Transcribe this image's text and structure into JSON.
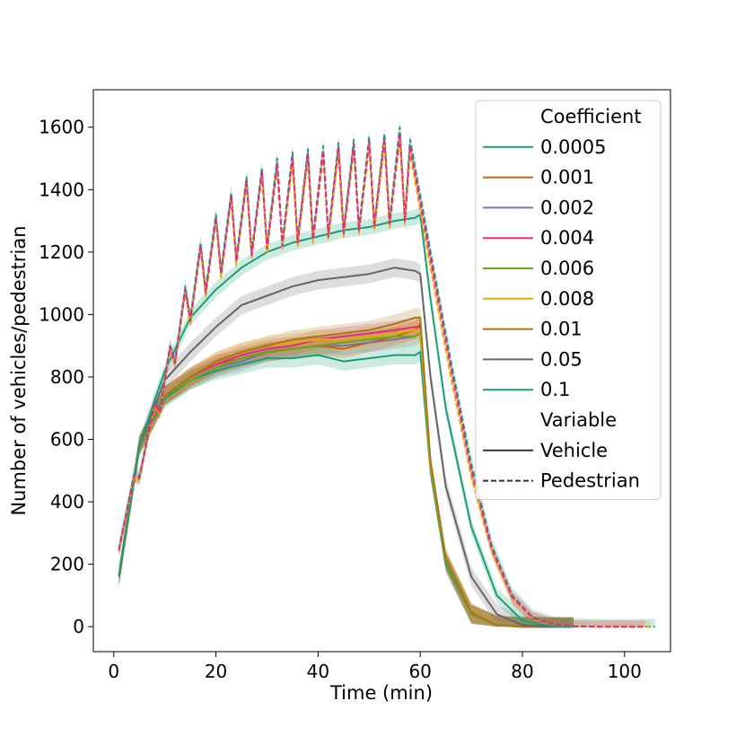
{
  "chart_data": {
    "type": "line",
    "xlabel": "Time (min)",
    "ylabel": "Number of vehicles/pedestrian",
    "xlim": [
      -4,
      109
    ],
    "ylim": [
      -80,
      1720
    ],
    "xticks": [
      0,
      20,
      40,
      60,
      80,
      100
    ],
    "yticks": [
      0,
      200,
      400,
      600,
      800,
      1000,
      1200,
      1400,
      1600
    ],
    "grid": false,
    "legend": {
      "placement": "top-right",
      "entries": [
        {
          "label": "Coefficient",
          "kind": "header"
        },
        {
          "label": "0.0005",
          "kind": "series",
          "color": "#1b9e77",
          "dash": "solid"
        },
        {
          "label": "0.001",
          "kind": "series",
          "color": "#d95f02",
          "dash": "solid"
        },
        {
          "label": "0.002",
          "kind": "series",
          "color": "#7570b3",
          "dash": "solid"
        },
        {
          "label": "0.004",
          "kind": "series",
          "color": "#e7298a",
          "dash": "solid"
        },
        {
          "label": "0.006",
          "kind": "series",
          "color": "#66a61e",
          "dash": "solid"
        },
        {
          "label": "0.008",
          "kind": "series",
          "color": "#e6ab02",
          "dash": "solid"
        },
        {
          "label": "0.01",
          "kind": "series",
          "color": "#a6761d",
          "dash": "solid"
        },
        {
          "label": "0.05",
          "kind": "series",
          "color": "#666666",
          "dash": "solid"
        },
        {
          "label": "0.1",
          "kind": "series",
          "color": "#1b9e77",
          "dash": "solid"
        },
        {
          "label": "Variable",
          "kind": "header"
        },
        {
          "label": "Vehicle",
          "kind": "style",
          "color": "#333333",
          "dash": "solid"
        },
        {
          "label": "Pedestrian",
          "kind": "style",
          "color": "#333333",
          "dash": "dashed"
        }
      ]
    },
    "series": [
      {
        "name": "0.0005",
        "variable": "Vehicle",
        "color": "#1b9e77",
        "dash": "solid",
        "band": 30,
        "x": [
          1,
          5,
          10,
          15,
          20,
          25,
          30,
          35,
          40,
          45,
          50,
          55,
          59,
          60,
          62,
          65,
          70,
          75,
          80,
          85,
          90
        ],
        "y": [
          160,
          580,
          730,
          790,
          820,
          840,
          860,
          860,
          870,
          850,
          860,
          870,
          870,
          880,
          500,
          200,
          40,
          5,
          0,
          0,
          0
        ]
      },
      {
        "name": "0.001",
        "variable": "Vehicle",
        "color": "#d95f02",
        "dash": "solid",
        "band": 30,
        "x": [
          1,
          5,
          10,
          15,
          20,
          25,
          30,
          35,
          40,
          45,
          50,
          55,
          59,
          60,
          62,
          65,
          70,
          75,
          80,
          85,
          90
        ],
        "y": [
          160,
          580,
          740,
          800,
          840,
          860,
          880,
          890,
          900,
          890,
          910,
          930,
          950,
          970,
          520,
          210,
          40,
          5,
          0,
          0,
          0
        ]
      },
      {
        "name": "0.002",
        "variable": "Vehicle",
        "color": "#7570b3",
        "dash": "solid",
        "band": 30,
        "x": [
          1,
          5,
          10,
          15,
          20,
          25,
          30,
          35,
          40,
          45,
          50,
          55,
          59,
          60,
          62,
          65,
          70,
          75,
          80,
          85,
          90
        ],
        "y": [
          160,
          580,
          740,
          790,
          830,
          850,
          880,
          890,
          900,
          900,
          910,
          920,
          930,
          940,
          510,
          210,
          40,
          5,
          0,
          0,
          0
        ]
      },
      {
        "name": "0.004",
        "variable": "Vehicle",
        "color": "#e7298a",
        "dash": "solid",
        "band": 30,
        "x": [
          1,
          5,
          10,
          15,
          20,
          25,
          30,
          35,
          40,
          45,
          50,
          55,
          59,
          60,
          62,
          65,
          70,
          75,
          80,
          85,
          90
        ],
        "y": [
          160,
          580,
          740,
          800,
          840,
          870,
          890,
          900,
          920,
          930,
          940,
          950,
          960,
          960,
          520,
          210,
          40,
          5,
          0,
          0,
          0
        ]
      },
      {
        "name": "0.006",
        "variable": "Vehicle",
        "color": "#66a61e",
        "dash": "solid",
        "band": 30,
        "x": [
          1,
          5,
          10,
          15,
          20,
          25,
          30,
          35,
          40,
          45,
          50,
          55,
          59,
          60,
          62,
          65,
          70,
          75,
          80,
          85,
          90
        ],
        "y": [
          160,
          580,
          740,
          790,
          830,
          860,
          880,
          890,
          900,
          910,
          920,
          930,
          930,
          940,
          510,
          210,
          40,
          5,
          0,
          0,
          0
        ]
      },
      {
        "name": "0.008",
        "variable": "Vehicle",
        "color": "#e6ab02",
        "dash": "solid",
        "band": 30,
        "x": [
          1,
          5,
          10,
          15,
          20,
          25,
          30,
          35,
          40,
          45,
          50,
          55,
          59,
          60,
          62,
          65,
          70,
          75,
          80,
          85,
          90
        ],
        "y": [
          160,
          580,
          740,
          800,
          850,
          880,
          900,
          910,
          920,
          920,
          930,
          940,
          950,
          950,
          520,
          220,
          45,
          5,
          0,
          0,
          0
        ]
      },
      {
        "name": "0.01",
        "variable": "Vehicle",
        "color": "#a6761d",
        "dash": "solid",
        "band": 30,
        "x": [
          1,
          5,
          10,
          15,
          20,
          25,
          30,
          35,
          40,
          45,
          50,
          55,
          59,
          60,
          62,
          65,
          70,
          75,
          80,
          85,
          90
        ],
        "y": [
          160,
          580,
          740,
          800,
          850,
          880,
          900,
          920,
          930,
          940,
          950,
          970,
          990,
          990,
          530,
          220,
          45,
          5,
          0,
          0,
          0
        ]
      },
      {
        "name": "0.05",
        "variable": "Vehicle",
        "color": "#666666",
        "dash": "solid",
        "band": 30,
        "x": [
          1,
          5,
          10,
          15,
          20,
          25,
          30,
          35,
          40,
          45,
          50,
          55,
          59,
          60,
          62,
          65,
          70,
          75,
          80,
          85,
          90
        ],
        "y": [
          160,
          580,
          790,
          880,
          960,
          1030,
          1060,
          1090,
          1110,
          1120,
          1130,
          1150,
          1140,
          1130,
          800,
          450,
          160,
          40,
          5,
          0,
          0
        ]
      },
      {
        "name": "0.1",
        "variable": "Vehicle",
        "color": "#1b9e77",
        "dash": "solid",
        "band": 25,
        "x": [
          1,
          5,
          10,
          15,
          20,
          25,
          30,
          35,
          40,
          45,
          50,
          55,
          59,
          60,
          62,
          65,
          70,
          75,
          80,
          85,
          90
        ],
        "y": [
          160,
          580,
          820,
          990,
          1080,
          1150,
          1200,
          1230,
          1250,
          1270,
          1280,
          1300,
          1310,
          1320,
          1050,
          700,
          320,
          100,
          20,
          2,
          0
        ]
      },
      {
        "name": "Pedestrian (0.0005)",
        "variable": "Pedestrian",
        "color": "#1b9e77",
        "dash": "dashed",
        "band": 25,
        "sawtooth": true,
        "tail_end": 106,
        "peaks": [
          [
            4,
            490
          ],
          [
            8,
            720
          ],
          [
            11,
            900
          ],
          [
            14,
            1090
          ],
          [
            17,
            1230
          ],
          [
            20,
            1320
          ],
          [
            23,
            1390
          ],
          [
            26,
            1440
          ],
          [
            29,
            1470
          ],
          [
            32,
            1500
          ],
          [
            35,
            1520
          ],
          [
            38,
            1530
          ],
          [
            41,
            1540
          ],
          [
            44,
            1550
          ],
          [
            47,
            1560
          ],
          [
            50,
            1570
          ],
          [
            53,
            1580
          ],
          [
            56,
            1600
          ]
        ],
        "troughs": [
          [
            1,
            250
          ],
          [
            5,
            480
          ],
          [
            9,
            690
          ],
          [
            12,
            850
          ],
          [
            15,
            990
          ],
          [
            18,
            1080
          ],
          [
            21,
            1140
          ],
          [
            24,
            1180
          ],
          [
            27,
            1200
          ],
          [
            30,
            1220
          ],
          [
            33,
            1230
          ],
          [
            36,
            1240
          ],
          [
            39,
            1250
          ],
          [
            42,
            1260
          ],
          [
            45,
            1270
          ],
          [
            48,
            1280
          ],
          [
            51,
            1290
          ],
          [
            54,
            1300
          ],
          [
            57,
            1310
          ]
        ],
        "decline": [
          [
            58,
            1560
          ],
          [
            62,
            1200
          ],
          [
            66,
            850
          ],
          [
            70,
            520
          ],
          [
            74,
            260
          ],
          [
            78,
            100
          ],
          [
            82,
            30
          ],
          [
            86,
            8
          ],
          [
            90,
            2
          ],
          [
            95,
            0
          ],
          [
            100,
            0
          ],
          [
            106,
            0
          ]
        ]
      },
      {
        "name": "Pedestrian (0.005–0.01)",
        "variable": "Pedestrian",
        "color": "#e6ab02",
        "dash": "dashed",
        "band": 20,
        "sawtooth": true,
        "tail_end": 105,
        "peaks": [
          [
            4,
            480
          ],
          [
            8,
            710
          ],
          [
            11,
            890
          ],
          [
            14,
            1070
          ],
          [
            17,
            1210
          ],
          [
            20,
            1300
          ],
          [
            23,
            1370
          ],
          [
            26,
            1420
          ],
          [
            29,
            1450
          ],
          [
            32,
            1470
          ],
          [
            35,
            1490
          ],
          [
            38,
            1500
          ],
          [
            41,
            1510
          ],
          [
            44,
            1520
          ],
          [
            47,
            1530
          ],
          [
            50,
            1540
          ],
          [
            53,
            1550
          ],
          [
            56,
            1560
          ]
        ],
        "troughs": [
          [
            1,
            240
          ],
          [
            5,
            470
          ],
          [
            9,
            680
          ],
          [
            12,
            840
          ],
          [
            15,
            970
          ],
          [
            18,
            1060
          ],
          [
            21,
            1120
          ],
          [
            24,
            1160
          ],
          [
            27,
            1180
          ],
          [
            30,
            1200
          ],
          [
            33,
            1210
          ],
          [
            36,
            1220
          ],
          [
            39,
            1230
          ],
          [
            42,
            1240
          ],
          [
            45,
            1250
          ],
          [
            48,
            1260
          ],
          [
            51,
            1270
          ],
          [
            54,
            1280
          ],
          [
            57,
            1290
          ]
        ],
        "decline": [
          [
            58,
            1520
          ],
          [
            62,
            1150
          ],
          [
            66,
            800
          ],
          [
            70,
            480
          ],
          [
            74,
            240
          ],
          [
            78,
            90
          ],
          [
            82,
            25
          ],
          [
            86,
            6
          ],
          [
            90,
            1
          ],
          [
            95,
            0
          ],
          [
            100,
            0
          ],
          [
            105,
            0
          ]
        ]
      },
      {
        "name": "Pedestrian (0.002)",
        "variable": "Pedestrian",
        "color": "#e7298a",
        "dash": "dashed",
        "band": 20,
        "sawtooth": true,
        "tail_end": 104,
        "peaks": [
          [
            4,
            485
          ],
          [
            8,
            715
          ],
          [
            11,
            895
          ],
          [
            14,
            1080
          ],
          [
            17,
            1220
          ],
          [
            20,
            1310
          ],
          [
            23,
            1380
          ],
          [
            26,
            1430
          ],
          [
            29,
            1460
          ],
          [
            32,
            1485
          ],
          [
            35,
            1505
          ],
          [
            38,
            1515
          ],
          [
            41,
            1525
          ],
          [
            44,
            1535
          ],
          [
            47,
            1545
          ],
          [
            50,
            1555
          ],
          [
            53,
            1565
          ],
          [
            56,
            1580
          ]
        ],
        "troughs": [
          [
            1,
            245
          ],
          [
            5,
            475
          ],
          [
            9,
            685
          ],
          [
            12,
            845
          ],
          [
            15,
            980
          ],
          [
            18,
            1070
          ],
          [
            21,
            1130
          ],
          [
            24,
            1170
          ],
          [
            27,
            1190
          ],
          [
            30,
            1210
          ],
          [
            33,
            1220
          ],
          [
            36,
            1230
          ],
          [
            39,
            1240
          ],
          [
            42,
            1250
          ],
          [
            45,
            1260
          ],
          [
            48,
            1270
          ],
          [
            51,
            1280
          ],
          [
            54,
            1290
          ],
          [
            57,
            1300
          ]
        ],
        "decline": [
          [
            58,
            1540
          ],
          [
            62,
            1180
          ],
          [
            66,
            830
          ],
          [
            70,
            500
          ],
          [
            74,
            250
          ],
          [
            78,
            95
          ],
          [
            82,
            28
          ],
          [
            86,
            7
          ],
          [
            90,
            1
          ],
          [
            95,
            0
          ],
          [
            100,
            0
          ],
          [
            104,
            0
          ]
        ]
      }
    ]
  }
}
